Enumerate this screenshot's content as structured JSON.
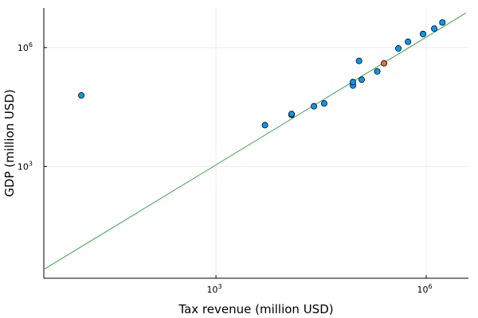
{
  "chart_data": {
    "type": "scatter",
    "title": "",
    "xlabel": "Tax revenue (million USD)",
    "ylabel": "GDP (million USD)",
    "x_scale": "log10",
    "y_scale": "log10",
    "xlim": [
      3.5,
      4000000
    ],
    "ylim": [
      1.5,
      10000000
    ],
    "x_ticks": [
      {
        "value": 1000,
        "base": "10",
        "exp": "3"
      },
      {
        "value": 1000000,
        "base": "10",
        "exp": "6"
      }
    ],
    "y_ticks": [
      {
        "value": 1000,
        "base": "10",
        "exp": "3"
      },
      {
        "value": 1000000,
        "base": "10",
        "exp": "6"
      }
    ],
    "grid": true,
    "legend": "none",
    "colors": {
      "points": "#009AFA",
      "highlight": "#E26F46",
      "line": "#3DA44E",
      "grid": "#EBEBEB",
      "axis": "#000000"
    },
    "series": [
      {
        "values": [
          {
            "x": 12,
            "y": 62000
          },
          {
            "x": 5000,
            "y": 11000
          },
          {
            "x": 12000,
            "y": 20000
          },
          {
            "x": 12000,
            "y": 21000
          },
          {
            "x": 25000,
            "y": 33000
          },
          {
            "x": 35000,
            "y": 39000
          },
          {
            "x": 90000,
            "y": 110000
          },
          {
            "x": 90000,
            "y": 135000
          },
          {
            "x": 110000,
            "y": 460000
          },
          {
            "x": 120000,
            "y": 155000
          },
          {
            "x": 200000,
            "y": 250000
          },
          {
            "x": 400000,
            "y": 950000
          },
          {
            "x": 550000,
            "y": 1400000
          },
          {
            "x": 900000,
            "y": 2200000
          },
          {
            "x": 1300000,
            "y": 3000000
          },
          {
            "x": 1700000,
            "y": 4300000
          }
        ]
      },
      {
        "values": [
          {
            "x": 250000,
            "y": 400000
          }
        ]
      },
      {
        "type": "line",
        "values": [
          {
            "x": 3.5,
            "y": 2.5
          },
          {
            "x": 3700000,
            "y": 7500000
          }
        ]
      }
    ]
  }
}
